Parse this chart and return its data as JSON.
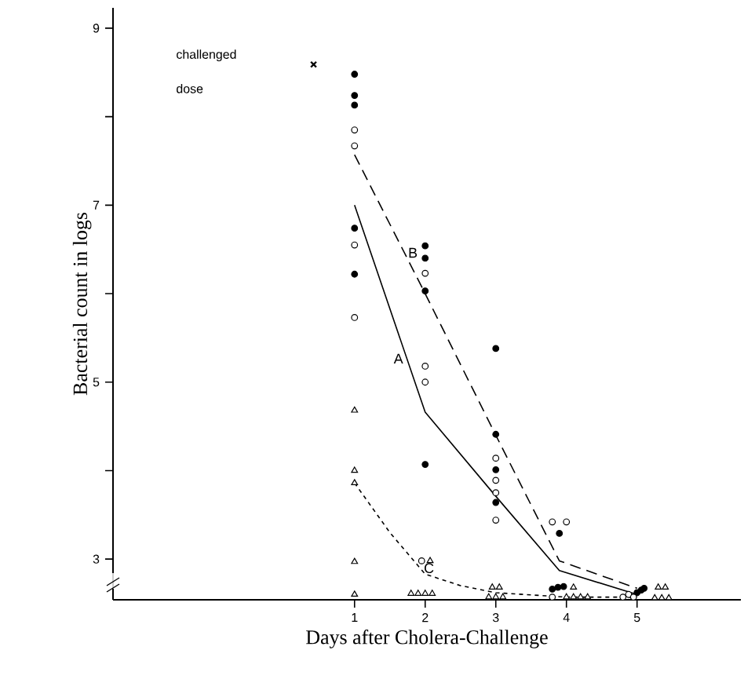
{
  "chart_data": {
    "type": "scatter",
    "xlabel": "Days after Cholera-Challenge",
    "ylabel": "Bacterial count in logs",
    "xlim": [
      -2.42,
      6.47
    ],
    "ylim": [
      2.54,
      9.23
    ],
    "xticks": [
      1,
      2,
      3,
      4,
      5
    ],
    "yticks": [
      {
        "value": 3,
        "label": "3"
      },
      {
        "value": 4,
        "label": null
      },
      {
        "value": 5,
        "label": "5"
      },
      {
        "value": 6,
        "label": null
      },
      {
        "value": 7,
        "label": "7"
      },
      {
        "value": 8,
        "label": null
      },
      {
        "value": 9,
        "label": "9"
      }
    ],
    "annotations": [
      "challenged dose"
    ],
    "series": [
      {
        "marker": "circle",
        "color": "#000000",
        "x": [
          1,
          1,
          1,
          1,
          1,
          2,
          2,
          2,
          2,
          3,
          3,
          3,
          3,
          3.9,
          3.8,
          3.88,
          3.96,
          5.0,
          5.06,
          5.1
        ],
        "values": [
          8.48,
          8.24,
          8.13,
          6.74,
          6.22,
          6.54,
          6.4,
          6.03,
          4.07,
          5.38,
          4.41,
          4.01,
          3.64,
          3.29,
          2.66,
          2.68,
          2.69,
          2.62,
          2.65,
          2.67
        ]
      },
      {
        "marker": "circle",
        "color": "#ffffff",
        "x": [
          1,
          1,
          1,
          1,
          2,
          2,
          2,
          1.95,
          3,
          3,
          3,
          3,
          3.8,
          4.0,
          3.8,
          4.8,
          4.88,
          4.95
        ],
        "values": [
          7.85,
          7.67,
          6.55,
          5.73,
          6.23,
          5.18,
          5.0,
          2.98,
          4.14,
          3.89,
          3.75,
          3.44,
          3.42,
          3.42,
          2.57,
          2.57,
          2.6,
          2.57
        ]
      },
      {
        "marker": "triangle",
        "color": "#ffffff",
        "x": [
          1,
          1,
          1,
          1,
          1,
          2.07,
          1.8,
          1.9,
          2.0,
          2.1,
          2.95,
          3.05,
          2.9,
          3.0,
          3.1,
          4.1,
          4.0,
          4.1,
          4.2,
          4.3,
          5.3,
          5.4,
          5.25,
          5.35,
          5.45
        ],
        "values": [
          4.68,
          4.0,
          3.86,
          2.97,
          2.6,
          2.98,
          2.61,
          2.61,
          2.61,
          2.61,
          2.68,
          2.68,
          2.57,
          2.57,
          2.57,
          2.68,
          2.57,
          2.57,
          2.57,
          2.57,
          2.68,
          2.68,
          2.56,
          2.56,
          2.56
        ]
      },
      {
        "marker": "cross",
        "color": "#000000",
        "x": [
          0.42
        ],
        "values": [
          8.59
        ]
      },
      {
        "type": "line",
        "name": "A",
        "line_style": "solid",
        "marker": "none",
        "color": "#000000",
        "x": [
          1,
          2,
          3,
          3.9,
          5
        ],
        "values": [
          7.0,
          4.66,
          3.71,
          2.87,
          2.6
        ]
      },
      {
        "type": "line",
        "name": "B",
        "line_style": "dashed",
        "marker": "none",
        "color": "#000000",
        "x": [
          1,
          2,
          3,
          3.9,
          5
        ],
        "values": [
          7.57,
          6.0,
          4.4,
          2.98,
          2.67
        ]
      },
      {
        "type": "line",
        "name": "C",
        "line_style": "dotted",
        "marker": "none",
        "color": "#000000",
        "x": [
          1,
          1.5,
          2,
          2.5,
          3,
          4,
          5
        ],
        "values": [
          3.86,
          3.3,
          2.83,
          2.7,
          2.62,
          2.57,
          2.57
        ]
      }
    ]
  }
}
